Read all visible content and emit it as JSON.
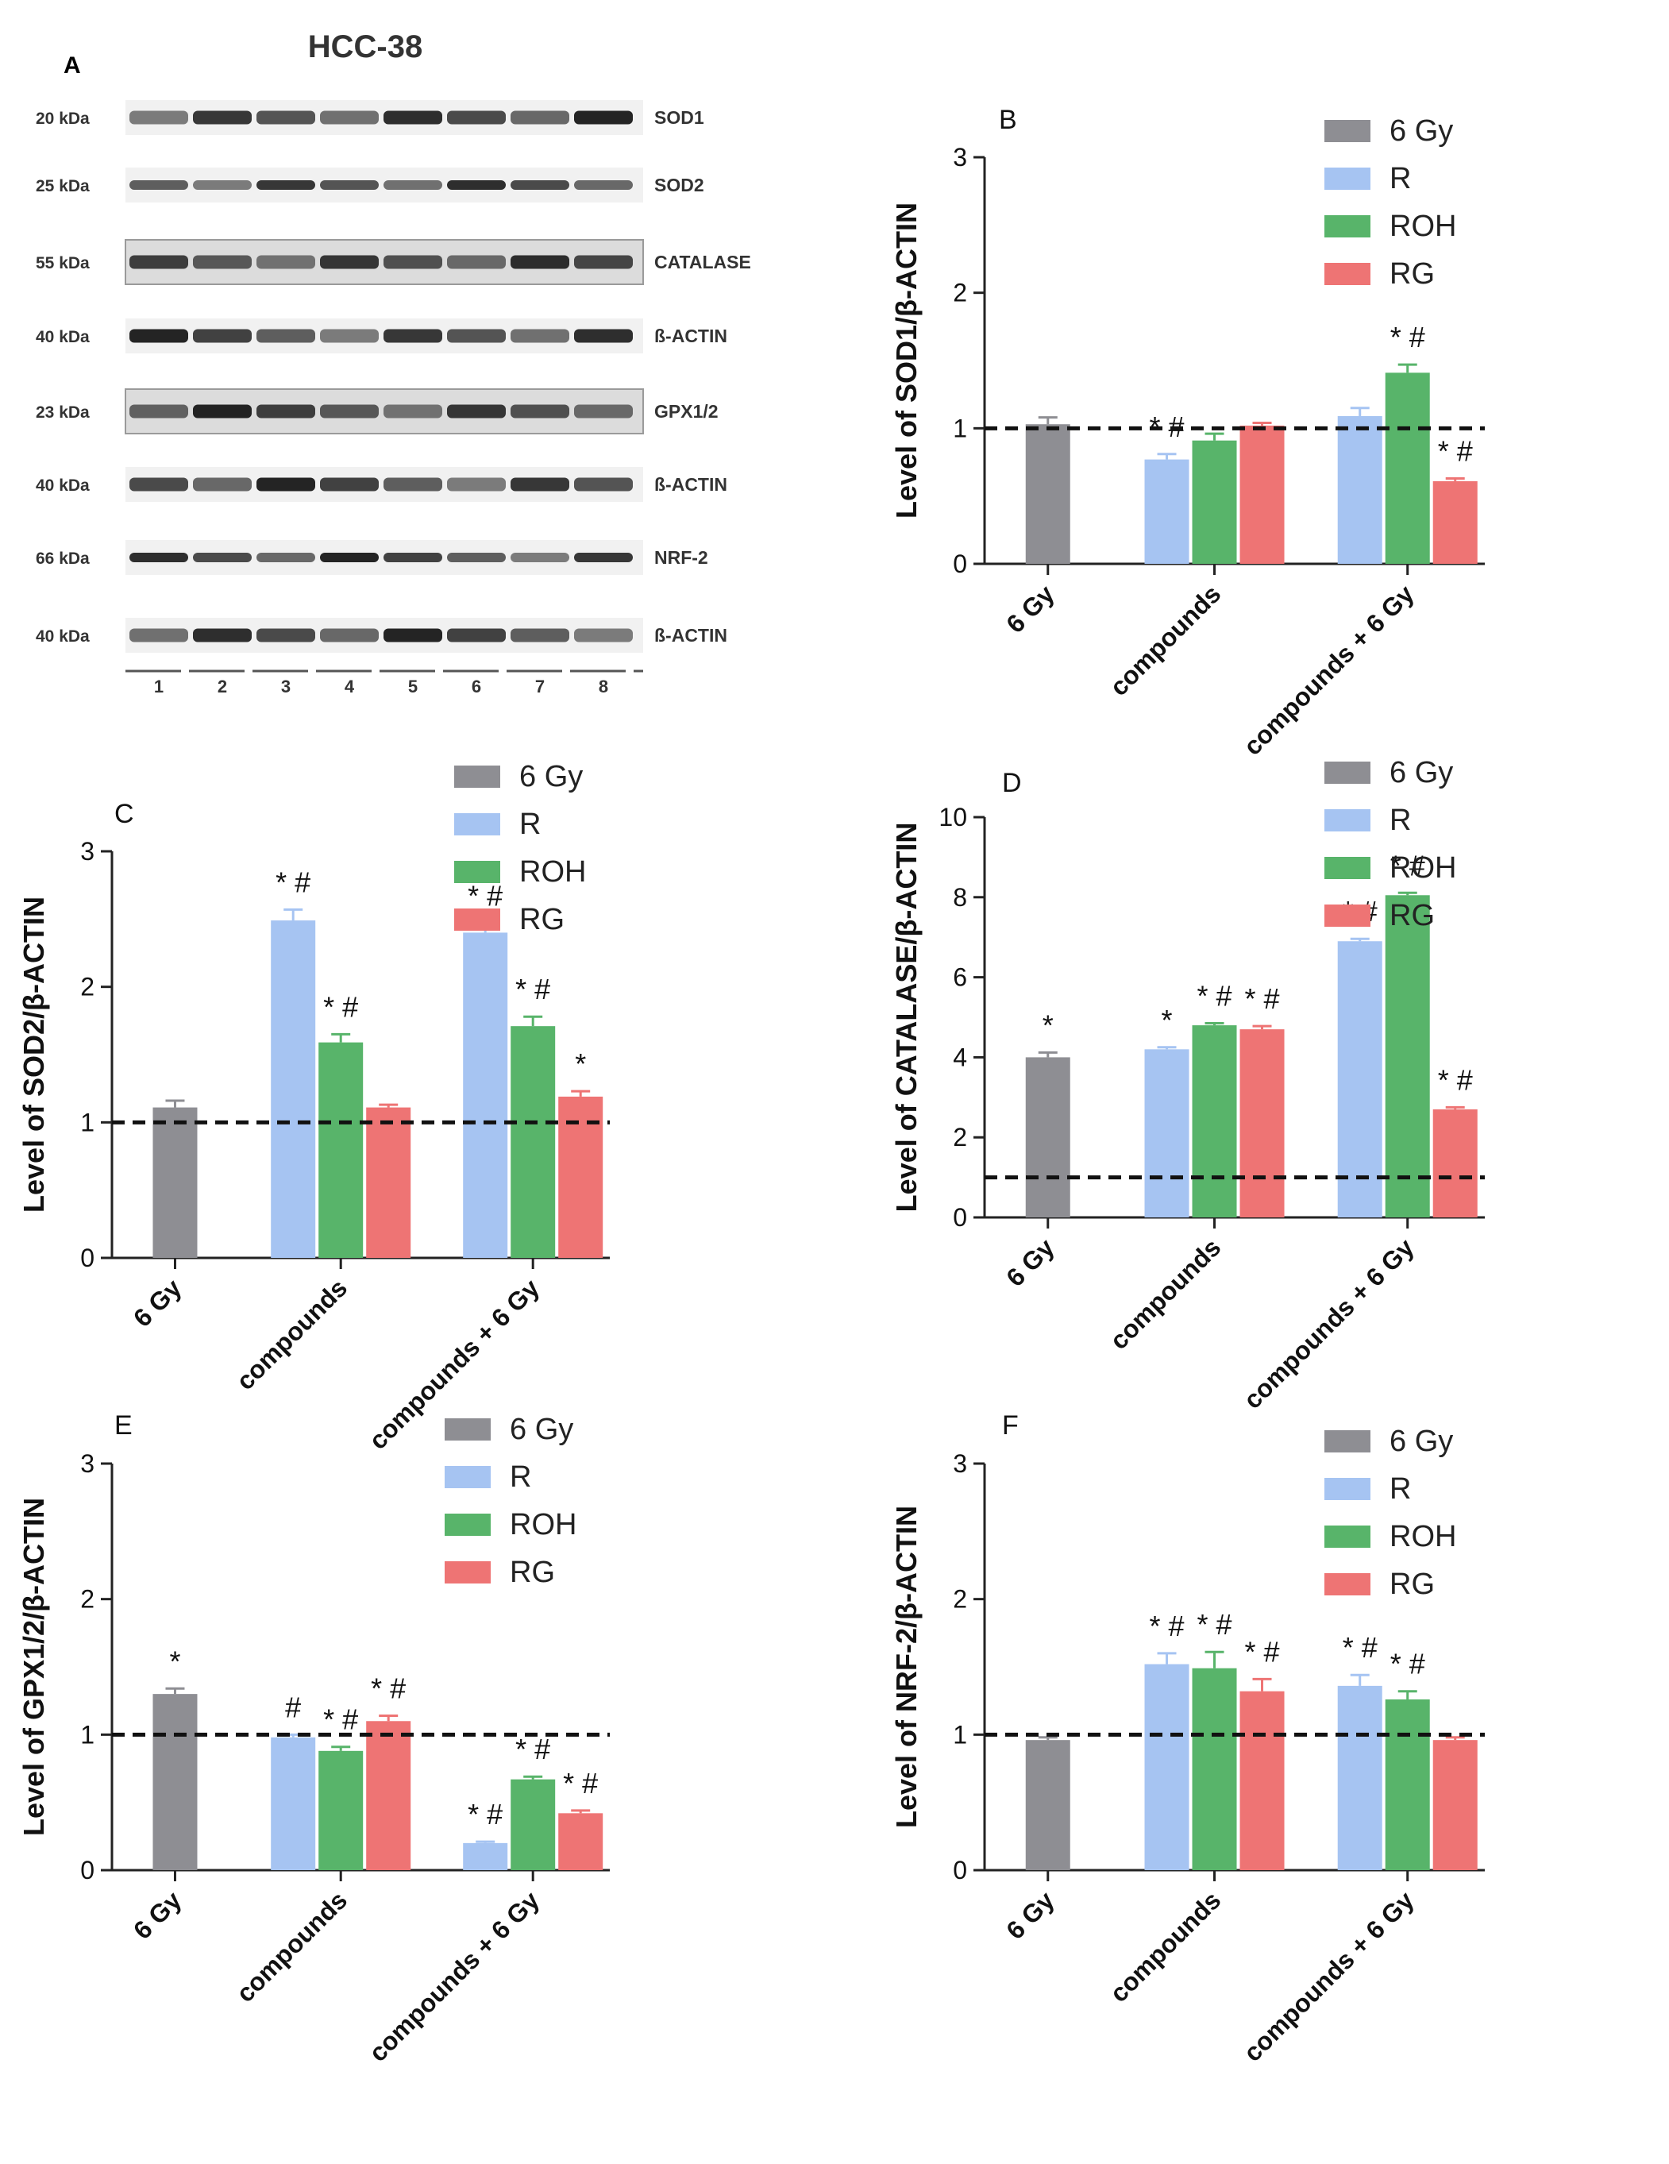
{
  "blot": {
    "panel_letter": "A",
    "title": "HCC-38",
    "bands": [
      {
        "kda": "20 kDa",
        "protein": "SOD1"
      },
      {
        "kda": "25 kDa",
        "protein": "SOD2"
      },
      {
        "kda": "55 kDa",
        "protein": "CATALASE"
      },
      {
        "kda": "40 kDa",
        "protein": "ß-ACTIN"
      },
      {
        "kda": "23 kDa",
        "protein": "GPX1/2"
      },
      {
        "kda": "40 kDa",
        "protein": "ß-ACTIN"
      },
      {
        "kda": "66 kDa",
        "protein": "NRF-2"
      },
      {
        "kda": "40 kDa",
        "protein": "ß-ACTIN"
      }
    ],
    "lanes": [
      "1",
      "2",
      "3",
      "4",
      "5",
      "6",
      "7",
      "8"
    ]
  },
  "chart_data": [
    {
      "panel": "B",
      "type": "bar",
      "ylabel": "Level of SOD1/β-ACTIN",
      "ylim": [
        0,
        3
      ],
      "yticks": [
        0,
        1,
        2,
        3
      ],
      "reference_line": 1,
      "legend": [
        "6 Gy",
        "R",
        "ROH",
        "RG"
      ],
      "categories": [
        "6 Gy",
        "compounds",
        "compounds + 6 Gy"
      ],
      "bars": [
        {
          "group": "6 Gy",
          "series": "6 Gy",
          "value": 1.03,
          "err": 0.05,
          "sig": ""
        },
        {
          "group": "compounds",
          "series": "R",
          "value": 0.77,
          "err": 0.04,
          "sig": "* #"
        },
        {
          "group": "compounds",
          "series": "ROH",
          "value": 0.91,
          "err": 0.05,
          "sig": ""
        },
        {
          "group": "compounds",
          "series": "RG",
          "value": 1.02,
          "err": 0.02,
          "sig": ""
        },
        {
          "group": "compounds + 6 Gy",
          "series": "R",
          "value": 1.09,
          "err": 0.06,
          "sig": ""
        },
        {
          "group": "compounds + 6 Gy",
          "series": "ROH",
          "value": 1.41,
          "err": 0.06,
          "sig": "* #"
        },
        {
          "group": "compounds + 6 Gy",
          "series": "RG",
          "value": 0.61,
          "err": 0.02,
          "sig": "* #"
        }
      ]
    },
    {
      "panel": "C",
      "type": "bar",
      "ylabel": "Level of SOD2/β-ACTIN",
      "ylim": [
        0,
        3
      ],
      "yticks": [
        0,
        1,
        2,
        3
      ],
      "reference_line": 1,
      "legend": [
        "6 Gy",
        "R",
        "ROH",
        "RG"
      ],
      "categories": [
        "6 Gy",
        "compounds",
        "compounds + 6 Gy"
      ],
      "bars": [
        {
          "group": "6 Gy",
          "series": "6 Gy",
          "value": 1.11,
          "err": 0.05,
          "sig": ""
        },
        {
          "group": "compounds",
          "series": "R",
          "value": 2.49,
          "err": 0.08,
          "sig": "* #"
        },
        {
          "group": "compounds",
          "series": "ROH",
          "value": 1.59,
          "err": 0.06,
          "sig": "* #"
        },
        {
          "group": "compounds",
          "series": "RG",
          "value": 1.11,
          "err": 0.02,
          "sig": ""
        },
        {
          "group": "compounds + 6 Gy",
          "series": "R",
          "value": 2.4,
          "err": 0.07,
          "sig": "* #"
        },
        {
          "group": "compounds + 6 Gy",
          "series": "ROH",
          "value": 1.71,
          "err": 0.07,
          "sig": "* #"
        },
        {
          "group": "compounds + 6 Gy",
          "series": "RG",
          "value": 1.19,
          "err": 0.04,
          "sig": "*"
        }
      ]
    },
    {
      "panel": "D",
      "type": "bar",
      "ylabel": "Level of CATALASE/β-ACTIN",
      "ylim": [
        0,
        10
      ],
      "yticks": [
        0,
        2,
        4,
        6,
        8,
        10
      ],
      "reference_line": 1,
      "legend": [
        "6 Gy",
        "R",
        "ROH",
        "RG"
      ],
      "categories": [
        "6 Gy",
        "compounds",
        "compounds + 6 Gy"
      ],
      "bars": [
        {
          "group": "6 Gy",
          "series": "6 Gy",
          "value": 4.0,
          "err": 0.12,
          "sig": "*"
        },
        {
          "group": "compounds",
          "series": "R",
          "value": 4.2,
          "err": 0.05,
          "sig": "*"
        },
        {
          "group": "compounds",
          "series": "ROH",
          "value": 4.8,
          "err": 0.05,
          "sig": "* #"
        },
        {
          "group": "compounds",
          "series": "RG",
          "value": 4.7,
          "err": 0.08,
          "sig": "* #"
        },
        {
          "group": "compounds + 6 Gy",
          "series": "R",
          "value": 6.9,
          "err": 0.06,
          "sig": "* #"
        },
        {
          "group": "compounds + 6 Gy",
          "series": "ROH",
          "value": 8.05,
          "err": 0.06,
          "sig": "* #"
        },
        {
          "group": "compounds + 6 Gy",
          "series": "RG",
          "value": 2.7,
          "err": 0.05,
          "sig": "* #"
        }
      ]
    },
    {
      "panel": "E",
      "type": "bar",
      "ylabel": "Level of GPX1/2/β-ACTIN",
      "ylim": [
        0,
        3
      ],
      "yticks": [
        0,
        1,
        2,
        3
      ],
      "reference_line": 1,
      "legend": [
        "6 Gy",
        "R",
        "ROH",
        "RG"
      ],
      "categories": [
        "6 Gy",
        "compounds",
        "compounds + 6 Gy"
      ],
      "bars": [
        {
          "group": "6 Gy",
          "series": "6 Gy",
          "value": 1.3,
          "err": 0.04,
          "sig": "*"
        },
        {
          "group": "compounds",
          "series": "R",
          "value": 0.98,
          "err": 0.02,
          "sig": "#"
        },
        {
          "group": "compounds",
          "series": "ROH",
          "value": 0.88,
          "err": 0.03,
          "sig": "* #"
        },
        {
          "group": "compounds",
          "series": "RG",
          "value": 1.1,
          "err": 0.04,
          "sig": "* #"
        },
        {
          "group": "compounds + 6 Gy",
          "series": "R",
          "value": 0.2,
          "err": 0.01,
          "sig": "* #"
        },
        {
          "group": "compounds + 6 Gy",
          "series": "ROH",
          "value": 0.67,
          "err": 0.02,
          "sig": "* #"
        },
        {
          "group": "compounds + 6 Gy",
          "series": "RG",
          "value": 0.42,
          "err": 0.02,
          "sig": "* #"
        }
      ]
    },
    {
      "panel": "F",
      "type": "bar",
      "ylabel": "Level of NRF-2/β-ACTIN",
      "ylim": [
        0,
        3
      ],
      "yticks": [
        0,
        1,
        2,
        3
      ],
      "reference_line": 1,
      "legend": [
        "6 Gy",
        "R",
        "ROH",
        "RG"
      ],
      "categories": [
        "6 Gy",
        "compounds",
        "compounds + 6 Gy"
      ],
      "bars": [
        {
          "group": "6 Gy",
          "series": "6 Gy",
          "value": 0.96,
          "err": 0.02,
          "sig": ""
        },
        {
          "group": "compounds",
          "series": "R",
          "value": 1.52,
          "err": 0.08,
          "sig": "* #"
        },
        {
          "group": "compounds",
          "series": "ROH",
          "value": 1.49,
          "err": 0.12,
          "sig": "* #"
        },
        {
          "group": "compounds",
          "series": "RG",
          "value": 1.32,
          "err": 0.09,
          "sig": "* #"
        },
        {
          "group": "compounds + 6 Gy",
          "series": "R",
          "value": 1.36,
          "err": 0.08,
          "sig": "* #"
        },
        {
          "group": "compounds + 6 Gy",
          "series": "ROH",
          "value": 1.26,
          "err": 0.06,
          "sig": "* #"
        },
        {
          "group": "compounds + 6 Gy",
          "series": "RG",
          "value": 0.96,
          "err": 0.02,
          "sig": ""
        }
      ]
    }
  ],
  "colors": {
    "6 Gy": "#8e8e93",
    "R": "#a6c4f2",
    "ROH": "#58b46a",
    "RG": "#ee7474",
    "axis": "#222222"
  }
}
